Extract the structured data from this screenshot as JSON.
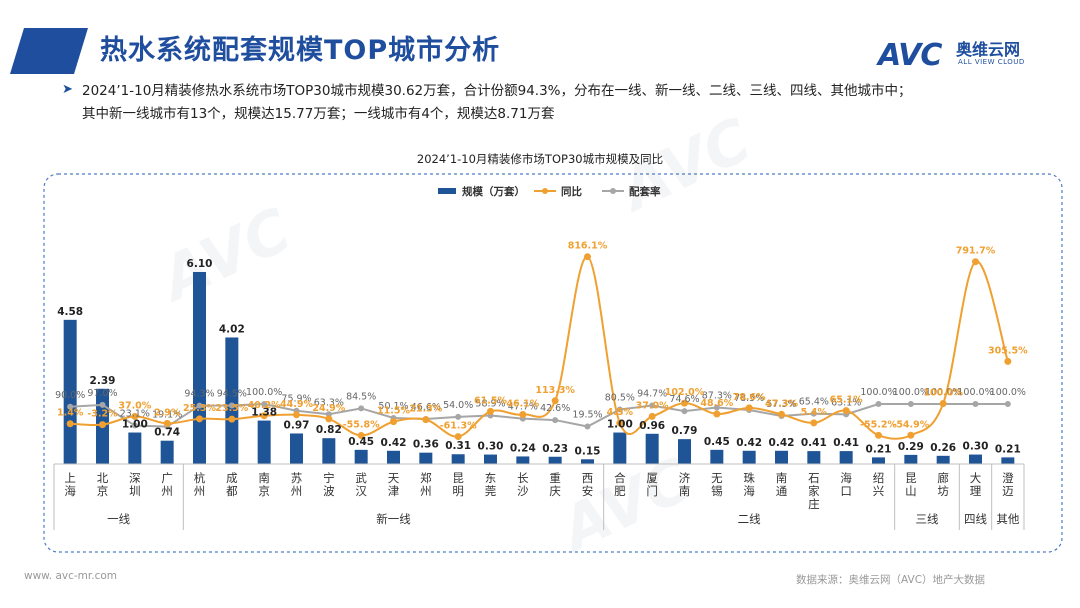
{
  "page": {
    "title": "热水系统配套规模TOP城市分析",
    "logo_avc": "AVC",
    "logo_cn": "奥维云网",
    "logo_en": "ALL VIEW CLOUD",
    "summary_line1": "2024’1-10月精装修热水系统市场TOP30城市规模30.62万套，合计份额94.3%，分布在一线、新一线、二线、三线、四线、其他城市中；",
    "summary_line2": "其中新一线城市有13个，规模达15.77万套；一线城市有4个，规模达8.71万套",
    "chart_title": "2024’1-10月精装修市场TOP30城市规模及同比",
    "footer_left": "www. avc-mr.com",
    "footer_right": "数据来源：奥维云网（AVC）地产大数据",
    "watermark": "AVC",
    "colors": {
      "primary": "#1f4e9e",
      "bar": "#1f5597",
      "yoy": "#f0a030",
      "rate": "#a6a6a6",
      "frame": "#4a7ac8"
    }
  },
  "chart_data": {
    "type": "bar",
    "categories": [
      "上海",
      "北京",
      "深圳",
      "广州",
      "杭州",
      "成都",
      "南京",
      "苏州",
      "宁波",
      "武汉",
      "天津",
      "郑州",
      "昆明",
      "东莞",
      "长沙",
      "重庆",
      "西安",
      "合肥",
      "厦门",
      "济南",
      "无锡",
      "珠海",
      "南通",
      "石家庄",
      "海口",
      "绍兴",
      "昆山",
      "廊坊",
      "大理",
      "澄迈"
    ],
    "series": [
      {
        "name": "规模（万套）",
        "type": "bar",
        "values": [
          4.58,
          2.39,
          1.0,
          0.74,
          6.1,
          4.02,
          1.38,
          0.97,
          0.82,
          0.45,
          0.42,
          0.36,
          0.31,
          0.3,
          0.24,
          0.23,
          0.15,
          1.0,
          0.96,
          0.79,
          0.45,
          0.42,
          0.42,
          0.41,
          0.41,
          0.21,
          0.29,
          0.26,
          0.3,
          0.21
        ],
        "labels": [
          "4.58",
          "2.39",
          "1.00",
          "0.74",
          "6.10",
          "4.02",
          "1.38",
          "0.97",
          "0.82",
          "0.45",
          "0.42",
          "0.36",
          "0.31",
          "0.30",
          "0.24",
          "0.23",
          "0.15",
          "1.00",
          "0.96",
          "0.79",
          "0.45",
          "0.42",
          "0.42",
          "0.41",
          "0.41",
          "0.21",
          "0.29",
          "0.26",
          "0.30",
          "0.21"
        ]
      },
      {
        "name": "同比",
        "type": "line",
        "values": [
          1.4,
          -3.2,
          37.0,
          2.9,
          25.3,
          23.5,
          40.2,
          44.9,
          24.9,
          -55.8,
          11.5,
          21.3,
          -61.3,
          61.5,
          46.1,
          113.3,
          816.1,
          4.5,
          37.0,
          102.0,
          48.6,
          78.6,
          47.3,
          5.4,
          65.1,
          -55.2,
          -54.9,
          100.0,
          791.7,
          305.5
        ],
        "labels": [
          "1.4%",
          "-3.2%",
          "37.0%",
          "2.9%",
          "25.3%",
          "23.5%",
          "40.2%",
          "44.9%",
          "24.9%",
          "-55.8%",
          "11.5%",
          "21.3%",
          "-61.3%",
          "61.5%",
          "46.1%",
          "113.3%",
          "816.1%",
          "4.5%",
          "37.0%",
          "102.0%",
          "48.6%",
          "78.6%",
          "47.3%",
          "5.4%",
          "65.1%",
          "-55.2%",
          "-54.9%",
          "100.0%",
          "791.7%",
          "305.5%"
        ]
      },
      {
        "name": "配套率",
        "type": "line",
        "values": [
          90.0,
          97.0,
          23.1,
          19.1,
          94.3,
          94.5,
          100.0,
          75.9,
          63.3,
          84.5,
          50.1,
          46.6,
          54.0,
          58.9,
          47.7,
          42.6,
          19.5,
          80.5,
          94.7,
          74.6,
          87.3,
          78.5,
          57.3,
          65.4,
          63.1,
          100.0,
          100.0,
          100.0,
          100.0,
          100.0
        ],
        "labels": [
          "90.0%",
          "97.0%",
          "23.1%",
          "19.1%",
          "94.3%",
          "94.5%",
          "100.0%",
          "75.9%",
          "63.3%",
          "84.5%",
          "50.1%",
          "46.6%",
          "54.0%",
          "58.9%",
          "47.7%",
          "42.6%",
          "19.5%",
          "80.5%",
          "94.7%",
          "74.6%",
          "87.3%",
          "78.5%",
          "57.3%",
          "65.4%",
          "63.1%",
          "100.0%",
          "100.0%",
          "100.0%",
          "100.0%",
          "100.0%"
        ]
      }
    ],
    "groups": [
      {
        "name": "一线",
        "start": 0,
        "end": 3
      },
      {
        "name": "新一线",
        "start": 4,
        "end": 16
      },
      {
        "name": "二线",
        "start": 17,
        "end": 25
      },
      {
        "name": "三线",
        "start": 26,
        "end": 27
      },
      {
        "name": "四线",
        "start": 28,
        "end": 28
      },
      {
        "name": "其他",
        "start": 29,
        "end": 29
      }
    ],
    "legend_position": "top-center"
  }
}
